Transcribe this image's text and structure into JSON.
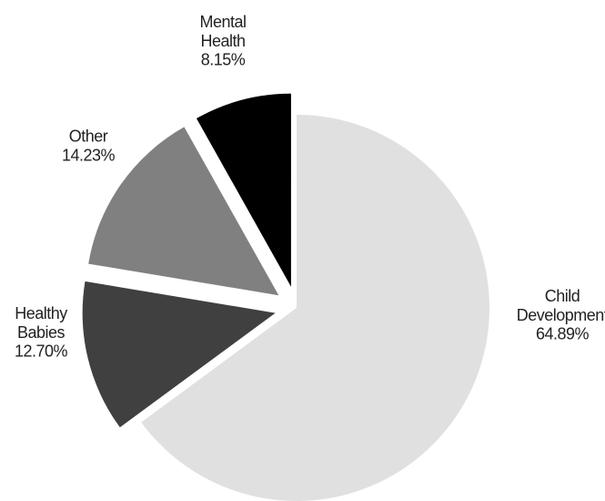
{
  "chart_data": {
    "type": "pie",
    "categories": [
      "Child Development",
      "Healthy Babies",
      "Other",
      "Mental Health"
    ],
    "values": [
      64.89,
      12.7,
      14.23,
      8.15
    ],
    "value_labels": [
      "64.89%",
      "12.70%",
      "14.23%",
      "8.15%"
    ],
    "colors": [
      "#e0e0e0",
      "#404040",
      "#808080",
      "#000000"
    ],
    "exploded": [
      false,
      true,
      true,
      true
    ],
    "start_angle": 90,
    "direction": "clockwise"
  }
}
